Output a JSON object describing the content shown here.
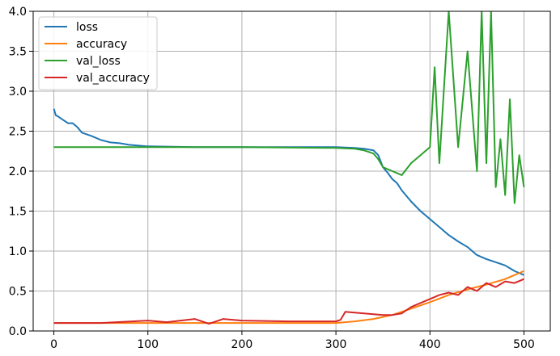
{
  "chart_data": {
    "type": "line",
    "title": "",
    "xlabel": "",
    "ylabel": "",
    "xlim": [
      -22,
      528
    ],
    "ylim": [
      0,
      4
    ],
    "xticks": [
      0,
      100,
      200,
      300,
      400,
      500
    ],
    "yticks": [
      0.0,
      0.5,
      1.0,
      1.5,
      2.0,
      2.5,
      3.0,
      3.5,
      4.0
    ],
    "xtick_labels": [
      "0",
      "100",
      "200",
      "300",
      "400",
      "500"
    ],
    "ytick_labels": [
      "0.0",
      "0.5",
      "1.0",
      "1.5",
      "2.0",
      "2.5",
      "3.0",
      "3.5",
      "4.0"
    ],
    "grid": true,
    "legend_position": "top-left",
    "series": [
      {
        "name": "loss",
        "color": "#1f77b4",
        "x": [
          0,
          2,
          5,
          10,
          15,
          20,
          25,
          30,
          40,
          50,
          60,
          70,
          80,
          90,
          100,
          150,
          200,
          250,
          300,
          320,
          330,
          340,
          345,
          350,
          355,
          360,
          365,
          370,
          380,
          390,
          400,
          410,
          420,
          430,
          440,
          450,
          460,
          470,
          480,
          490,
          500
        ],
        "y": [
          2.78,
          2.7,
          2.68,
          2.64,
          2.6,
          2.6,
          2.55,
          2.48,
          2.44,
          2.39,
          2.36,
          2.35,
          2.33,
          2.32,
          2.31,
          2.3,
          2.3,
          2.3,
          2.3,
          2.29,
          2.28,
          2.26,
          2.2,
          2.05,
          1.98,
          1.9,
          1.85,
          1.76,
          1.62,
          1.5,
          1.4,
          1.3,
          1.2,
          1.12,
          1.05,
          0.95,
          0.9,
          0.86,
          0.82,
          0.75,
          0.7
        ]
      },
      {
        "name": "accuracy",
        "color": "#ff7f0e",
        "x": [
          0,
          50,
          100,
          150,
          200,
          250,
          300,
          320,
          340,
          360,
          380,
          400,
          420,
          440,
          460,
          480,
          500
        ],
        "y": [
          0.1,
          0.1,
          0.1,
          0.1,
          0.1,
          0.1,
          0.1,
          0.12,
          0.15,
          0.2,
          0.28,
          0.36,
          0.45,
          0.52,
          0.58,
          0.65,
          0.75
        ]
      },
      {
        "name": "val_loss",
        "color": "#2ca02c",
        "x": [
          0,
          100,
          200,
          300,
          320,
          330,
          340,
          345,
          350,
          360,
          370,
          380,
          390,
          400,
          405,
          410,
          420,
          430,
          440,
          450,
          455,
          460,
          465,
          470,
          475,
          480,
          485,
          490,
          495,
          500
        ],
        "y": [
          2.3,
          2.3,
          2.3,
          2.29,
          2.28,
          2.26,
          2.22,
          2.15,
          2.05,
          2.0,
          1.95,
          2.1,
          2.2,
          2.3,
          3.3,
          2.1,
          4.0,
          2.3,
          3.5,
          2.0,
          4.0,
          2.1,
          4.0,
          1.8,
          2.4,
          1.7,
          2.9,
          1.6,
          2.2,
          1.8
        ]
      },
      {
        "name": "val_accuracy",
        "color": "#d62728",
        "x": [
          0,
          50,
          100,
          120,
          150,
          165,
          180,
          200,
          250,
          300,
          305,
          310,
          330,
          350,
          360,
          370,
          380,
          390,
          400,
          410,
          420,
          430,
          440,
          450,
          460,
          470,
          480,
          490,
          500
        ],
        "y": [
          0.1,
          0.1,
          0.13,
          0.11,
          0.15,
          0.09,
          0.15,
          0.13,
          0.12,
          0.12,
          0.14,
          0.24,
          0.22,
          0.2,
          0.2,
          0.22,
          0.3,
          0.35,
          0.4,
          0.45,
          0.48,
          0.45,
          0.55,
          0.5,
          0.6,
          0.55,
          0.62,
          0.6,
          0.65
        ]
      }
    ]
  }
}
